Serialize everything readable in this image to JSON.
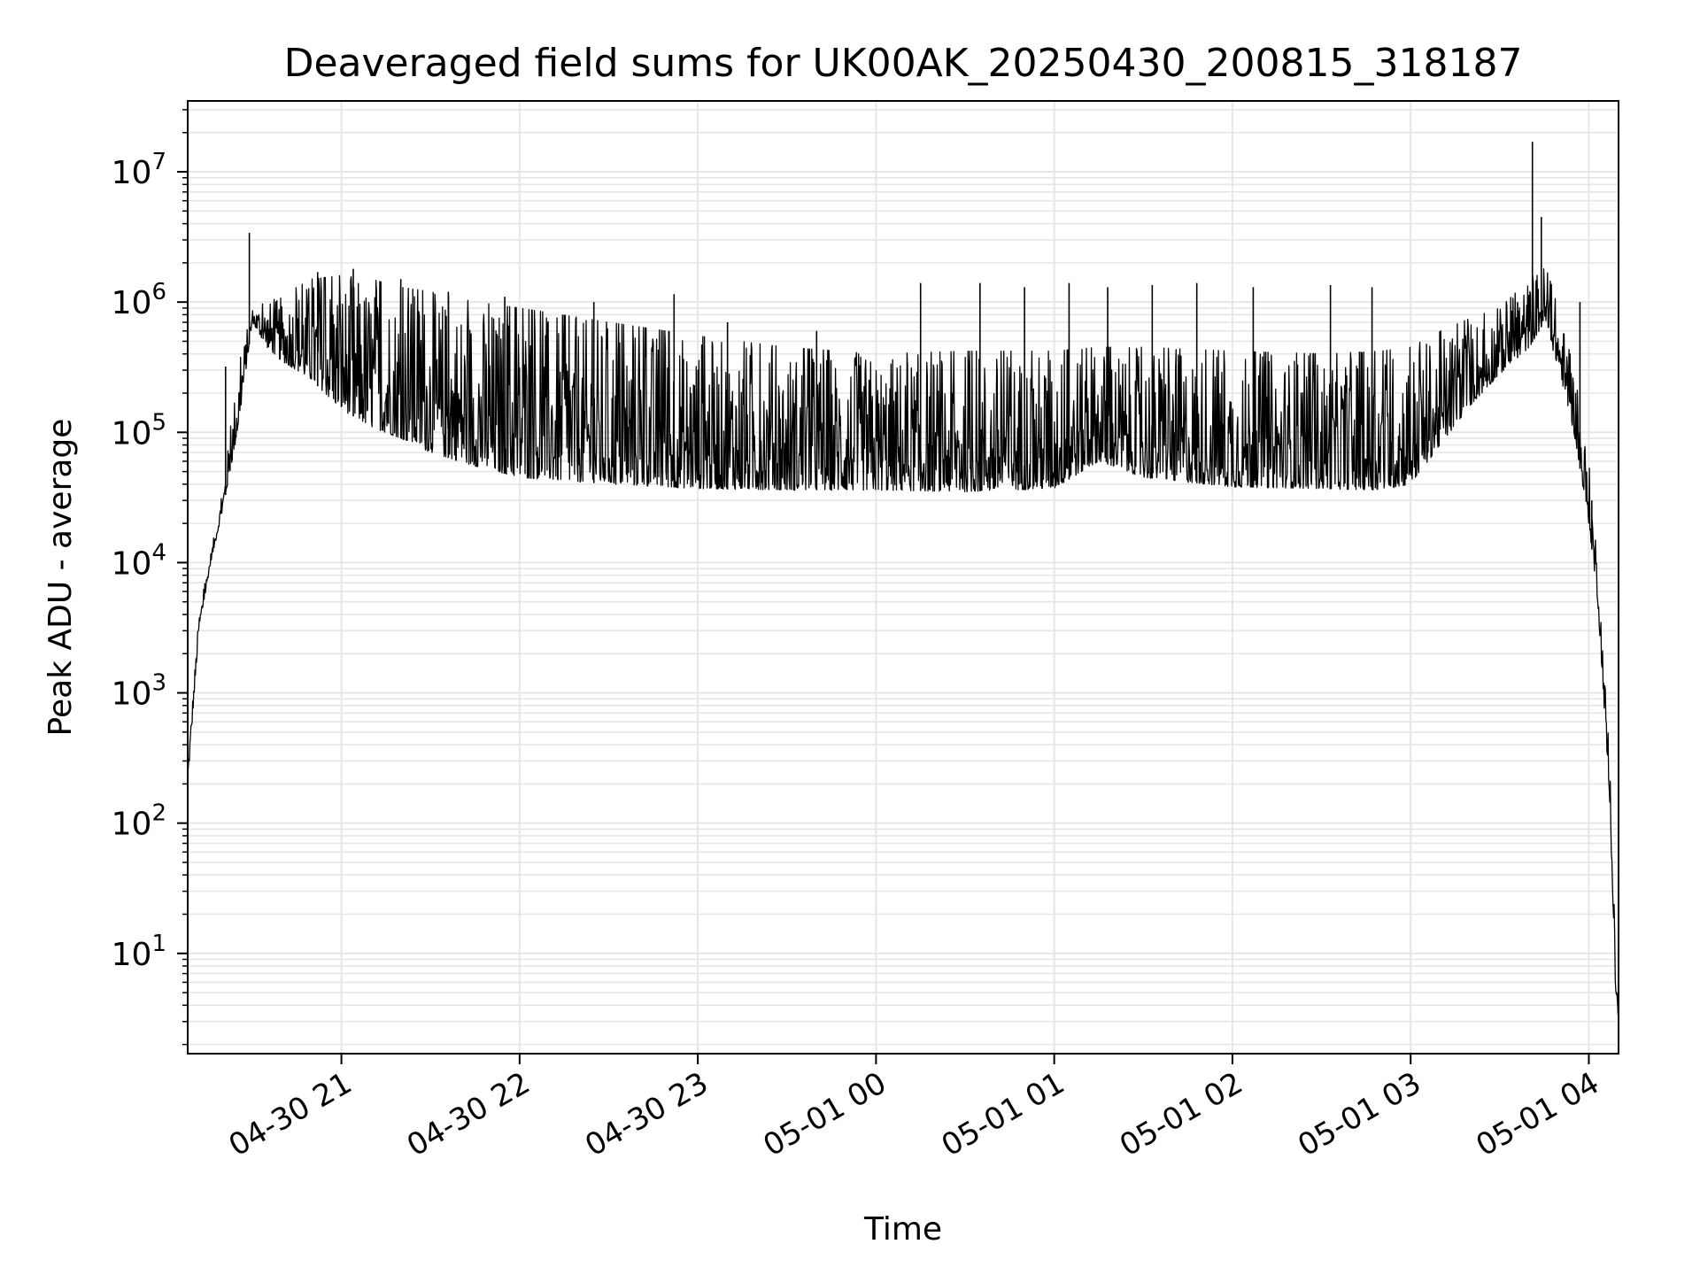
{
  "chart_data": {
    "type": "line",
    "title": "Deaveraged field sums for UK00AK_20250430_200815_318187",
    "xlabel": "Time",
    "ylabel": "Peak ADU - average",
    "x_scale": "time",
    "y_scale": "log",
    "xlim": [
      "2025-04-30 20:08:15",
      "2025-05-01 04:10:00"
    ],
    "ylim": [
      1.7,
      35000000
    ],
    "grid": true,
    "legend": "none",
    "x_ticks": [
      {
        "value": "2025-04-30 21:00",
        "label": "04-30 21"
      },
      {
        "value": "2025-04-30 22:00",
        "label": "04-30 22"
      },
      {
        "value": "2025-04-30 23:00",
        "label": "04-30 23"
      },
      {
        "value": "2025-05-01 00:00",
        "label": "05-01 00"
      },
      {
        "value": "2025-05-01 01:00",
        "label": "05-01 01"
      },
      {
        "value": "2025-05-01 02:00",
        "label": "05-01 02"
      },
      {
        "value": "2025-05-01 03:00",
        "label": "05-01 03"
      },
      {
        "value": "2025-05-01 04:00",
        "label": "05-01 04"
      }
    ],
    "y_ticks": [
      {
        "value": 10,
        "base": "10",
        "exp": "1"
      },
      {
        "value": 100,
        "base": "10",
        "exp": "2"
      },
      {
        "value": 1000,
        "base": "10",
        "exp": "3"
      },
      {
        "value": 10000,
        "base": "10",
        "exp": "4"
      },
      {
        "value": 100000,
        "base": "10",
        "exp": "5"
      },
      {
        "value": 1000000,
        "base": "10",
        "exp": "6"
      },
      {
        "value": 10000000,
        "base": "10",
        "exp": "7"
      }
    ],
    "series": [
      {
        "color": "#000000",
        "envelope_low": {
          "x": [
            "2025-04-30 20:08:15",
            "2025-04-30 20:12",
            "2025-04-30 20:16",
            "2025-04-30 20:20",
            "2025-04-30 20:25",
            "2025-04-30 20:30",
            "2025-04-30 20:35",
            "2025-04-30 20:40",
            "2025-04-30 20:45",
            "2025-04-30 20:50",
            "2025-04-30 21:00",
            "2025-04-30 21:10",
            "2025-04-30 21:20",
            "2025-04-30 21:30",
            "2025-04-30 21:45",
            "2025-04-30 22:00",
            "2025-04-30 22:30",
            "2025-04-30 23:00",
            "2025-04-30 23:30",
            "2025-05-01 00:00",
            "2025-05-01 00:30",
            "2025-05-01 01:00",
            "2025-05-01 01:15",
            "2025-05-01 01:30",
            "2025-05-01 02:00",
            "2025-05-01 02:30",
            "2025-05-01 02:50",
            "2025-05-01 03:00",
            "2025-05-01 03:10",
            "2025-05-01 03:20",
            "2025-05-01 03:30",
            "2025-05-01 03:40",
            "2025-05-01 03:45",
            "2025-05-01 03:50",
            "2025-05-01 03:55",
            "2025-05-01 04:00",
            "2025-05-01 04:03",
            "2025-05-01 04:05",
            "2025-05-01 04:07",
            "2025-05-01 04:08",
            "2025-05-01 04:09",
            "2025-05-01 04:10"
          ],
          "y": [
            200,
            3000,
            10000,
            25000,
            100000,
            700000,
            450000,
            350000,
            300000,
            250000,
            150000,
            110000,
            90000,
            70000,
            55000,
            45000,
            40000,
            37000,
            36000,
            36000,
            35000,
            37000,
            60000,
            45000,
            38000,
            37000,
            36000,
            40000,
            80000,
            160000,
            280000,
            450000,
            700000,
            300000,
            100000,
            20000,
            5000,
            900,
            150,
            30,
            5,
            3
          ]
        },
        "envelope_high": {
          "x": [
            "2025-04-30 20:08:15",
            "2025-04-30 20:12",
            "2025-04-30 20:16",
            "2025-04-30 20:20",
            "2025-04-30 20:25",
            "2025-04-30 20:30",
            "2025-04-30 20:35",
            "2025-04-30 20:40",
            "2025-04-30 20:45",
            "2025-04-30 20:50",
            "2025-04-30 21:00",
            "2025-04-30 21:10",
            "2025-04-30 21:20",
            "2025-04-30 21:30",
            "2025-04-30 21:45",
            "2025-04-30 22:00",
            "2025-04-30 22:30",
            "2025-04-30 23:00",
            "2025-04-30 23:30",
            "2025-05-01 00:00",
            "2025-05-01 00:30",
            "2025-05-01 01:00",
            "2025-05-01 01:15",
            "2025-05-01 01:30",
            "2025-05-01 02:00",
            "2025-05-01 02:30",
            "2025-05-01 02:50",
            "2025-05-01 03:00",
            "2025-05-01 03:10",
            "2025-05-01 03:20",
            "2025-05-01 03:30",
            "2025-05-01 03:40",
            "2025-05-01 03:45",
            "2025-05-01 03:50",
            "2025-05-01 03:55",
            "2025-05-01 04:00",
            "2025-05-01 04:03",
            "2025-05-01 04:05",
            "2025-05-01 04:07",
            "2025-05-01 04:08",
            "2025-05-01 04:09",
            "2025-05-01 04:10"
          ],
          "y": [
            300,
            4000,
            12000,
            35000,
            300000,
            900000,
            1000000,
            1100000,
            1300000,
            1500000,
            1600000,
            1500000,
            1300000,
            1200000,
            1000000,
            900000,
            700000,
            550000,
            450000,
            400000,
            420000,
            420000,
            450000,
            450000,
            420000,
            400000,
            420000,
            450000,
            600000,
            750000,
            900000,
            1500000,
            2000000,
            900000,
            300000,
            60000,
            12000,
            2000,
            300,
            60,
            10,
            4
          ]
        },
        "spikes": [
          {
            "x": "2025-04-30 20:21:00",
            "y": 320000
          },
          {
            "x": "2025-04-30 20:29:00",
            "y": 3400000
          },
          {
            "x": "2025-04-30 20:52:00",
            "y": 1700000
          },
          {
            "x": "2025-04-30 21:04:00",
            "y": 1800000
          },
          {
            "x": "2025-04-30 21:20:00",
            "y": 1500000
          },
          {
            "x": "2025-04-30 21:36:00",
            "y": 1200000
          },
          {
            "x": "2025-04-30 21:55:00",
            "y": 1100000
          },
          {
            "x": "2025-04-30 22:25:00",
            "y": 1000000
          },
          {
            "x": "2025-04-30 22:52:00",
            "y": 1150000
          },
          {
            "x": "2025-04-30 23:10:00",
            "y": 700000
          },
          {
            "x": "2025-04-30 23:40:00",
            "y": 600000
          },
          {
            "x": "2025-05-01 00:15:00",
            "y": 1400000
          },
          {
            "x": "2025-05-01 00:35:00",
            "y": 1400000
          },
          {
            "x": "2025-05-01 00:50:00",
            "y": 1300000
          },
          {
            "x": "2025-05-01 01:05:00",
            "y": 1400000
          },
          {
            "x": "2025-05-01 01:18:00",
            "y": 1300000
          },
          {
            "x": "2025-05-01 01:33:00",
            "y": 1350000
          },
          {
            "x": "2025-05-01 01:48:00",
            "y": 1400000
          },
          {
            "x": "2025-05-01 02:07:00",
            "y": 1300000
          },
          {
            "x": "2025-05-01 02:33:00",
            "y": 1350000
          },
          {
            "x": "2025-05-01 02:47:00",
            "y": 1300000
          },
          {
            "x": "2025-05-01 03:36:00",
            "y": 1000000
          },
          {
            "x": "2025-05-01 03:41:00",
            "y": 17000000
          },
          {
            "x": "2025-05-01 03:44:00",
            "y": 4500000
          },
          {
            "x": "2025-05-01 03:57:00",
            "y": 1000000
          },
          {
            "x": "2025-05-01 04:01:00",
            "y": 30000
          }
        ]
      }
    ]
  }
}
